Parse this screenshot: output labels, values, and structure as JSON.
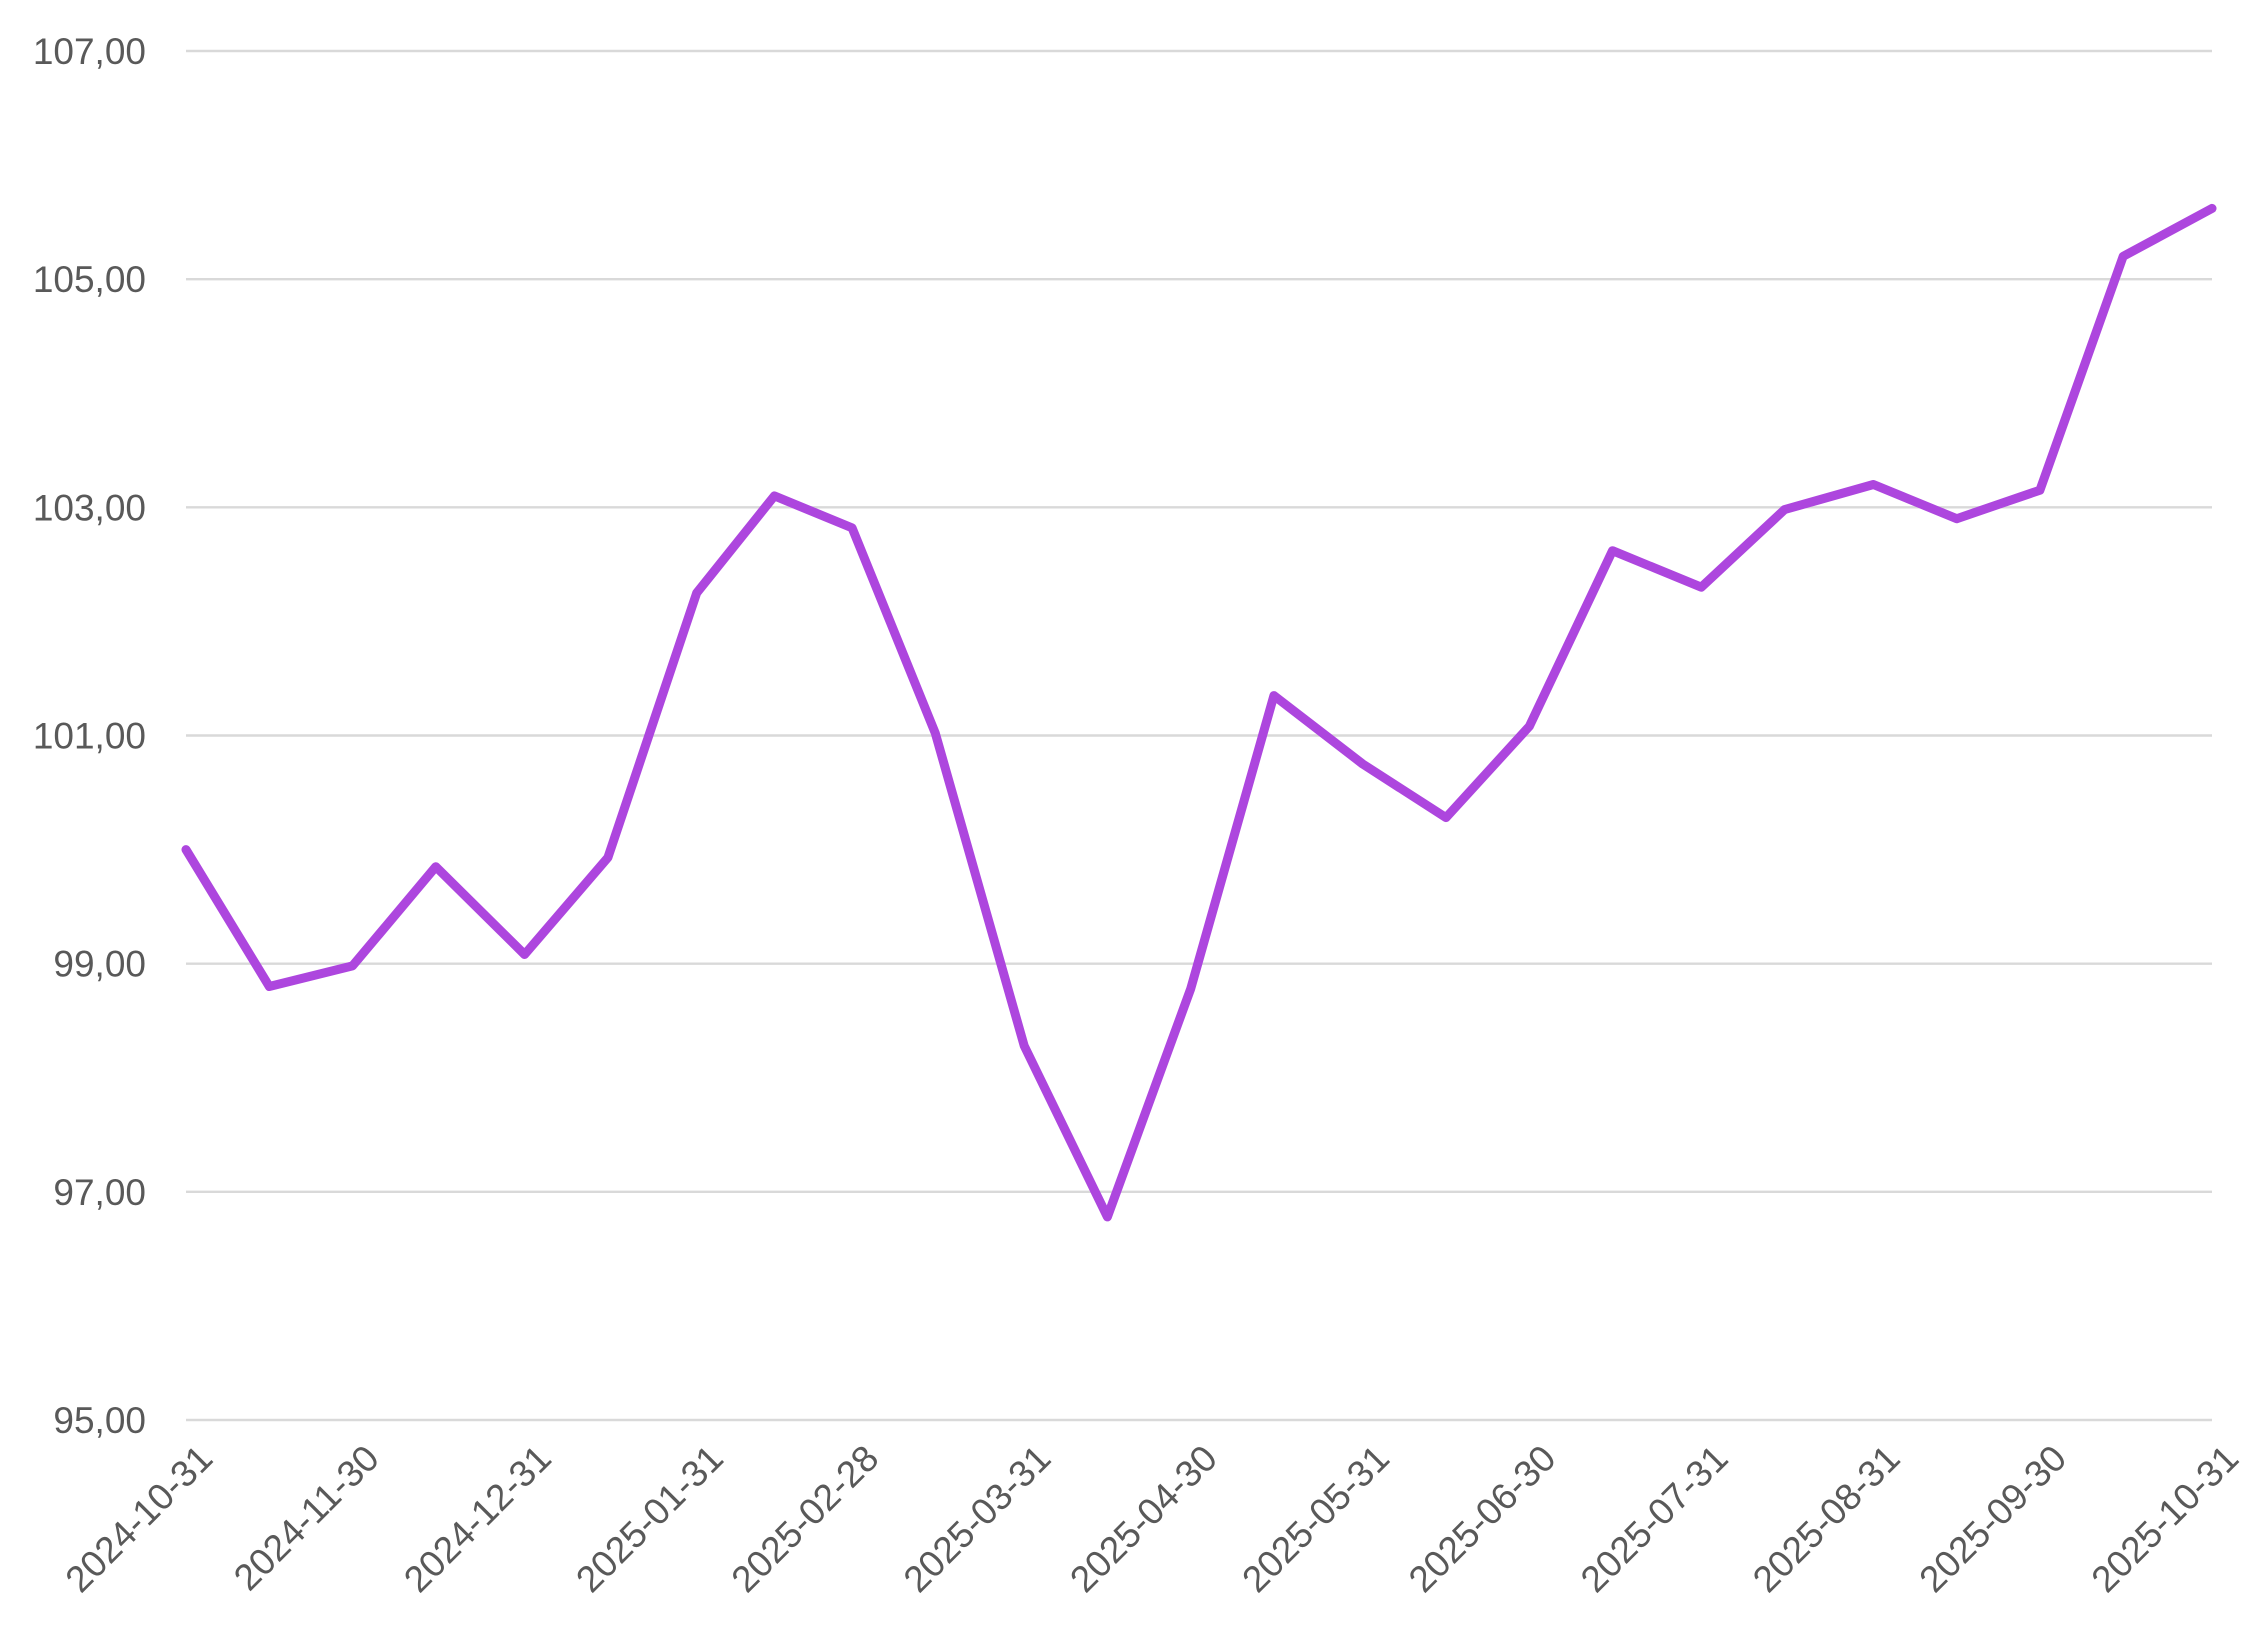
{
  "chart_data": {
    "type": "line",
    "title": "",
    "xlabel": "",
    "ylabel": "",
    "x": [
      "2024-10-31",
      "2024-11-15",
      "2024-11-30",
      "2024-12-15",
      "2024-12-31",
      "2025-01-15",
      "2025-01-31",
      "2025-02-14",
      "2025-02-28",
      "2025-03-15",
      "2025-03-31",
      "2025-04-15",
      "2025-04-30",
      "2025-05-15",
      "2025-05-31",
      "2025-06-15",
      "2025-06-30",
      "2025-07-15",
      "2025-07-31",
      "2025-08-15",
      "2025-08-31",
      "2025-09-15",
      "2025-09-30",
      "2025-10-15",
      "2025-10-31"
    ],
    "series": [
      {
        "values": [
          100.0,
          98.8,
          98.98,
          99.85,
          99.08,
          99.93,
          102.25,
          103.1,
          102.82,
          101.02,
          98.28,
          96.78,
          98.78,
          101.35,
          100.75,
          100.28,
          101.08,
          102.62,
          102.3,
          102.98,
          103.2,
          102.9,
          103.15,
          105.2,
          105.62
        ],
        "color": "#ad46de"
      }
    ],
    "x_tick_labels": [
      "2024-10-31",
      "2024-11-30",
      "2024-12-31",
      "2025-01-31",
      "2025-02-28",
      "2025-03-31",
      "2025-04-30",
      "2025-05-31",
      "2025-06-30",
      "2025-07-31",
      "2025-08-31",
      "2025-09-30",
      "2025-10-31"
    ],
    "y_tick_labels": [
      "95,00",
      "97,00",
      "99,00",
      "101,00",
      "103,00",
      "105,00",
      "107,00"
    ],
    "y_ticks": [
      95,
      97,
      99,
      101,
      103,
      105,
      107
    ],
    "ylim": [
      95,
      107
    ],
    "grid": "horizontal",
    "legend": "none"
  }
}
